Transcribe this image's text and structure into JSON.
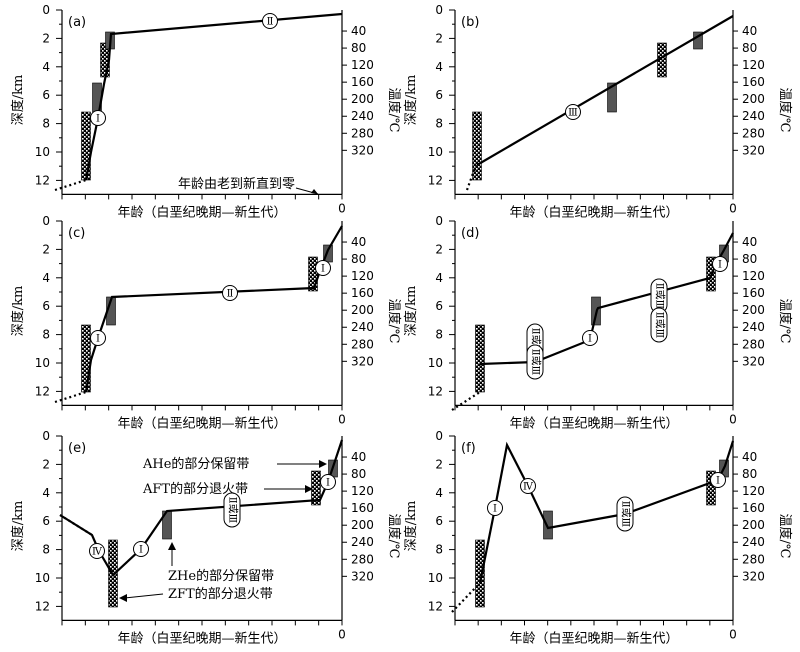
{
  "depth_label": "深度/km",
  "temp_label": "温度/℃",
  "age_label": "年龄（白垩纪晚期—新生代）",
  "age_zero": "0",
  "depth_ticks": [
    "0",
    "2",
    "4",
    "6",
    "8",
    "10",
    "12"
  ],
  "temp_ticks": [
    "40",
    "80",
    "120",
    "160",
    "200",
    "240",
    "280",
    "320"
  ],
  "marker_labels": {
    "I": "Ⅰ",
    "II": "Ⅱ",
    "III": "Ⅲ",
    "IV": "Ⅳ",
    "II_or_III": "Ⅱ或Ⅲ"
  },
  "annotations": {
    "arrow_note": "年龄由老到新直到零",
    "ahe": "AHe的部分保留带",
    "aft": "AFT的部分退火带",
    "zhe": "ZHe的部分保留带",
    "zft": "ZFT的部分退火带"
  },
  "panels": [
    {
      "id": "a",
      "label": "(a)"
    },
    {
      "id": "b",
      "label": "(b)"
    },
    {
      "id": "c",
      "label": "(c)"
    },
    {
      "id": "d",
      "label": "(d)"
    },
    {
      "id": "e",
      "label": "(e)"
    },
    {
      "id": "f",
      "label": "(f)"
    }
  ],
  "colors": {
    "ink": "#000000",
    "zhe_aft_fill": "#555555",
    "background": "#ffffff"
  }
}
